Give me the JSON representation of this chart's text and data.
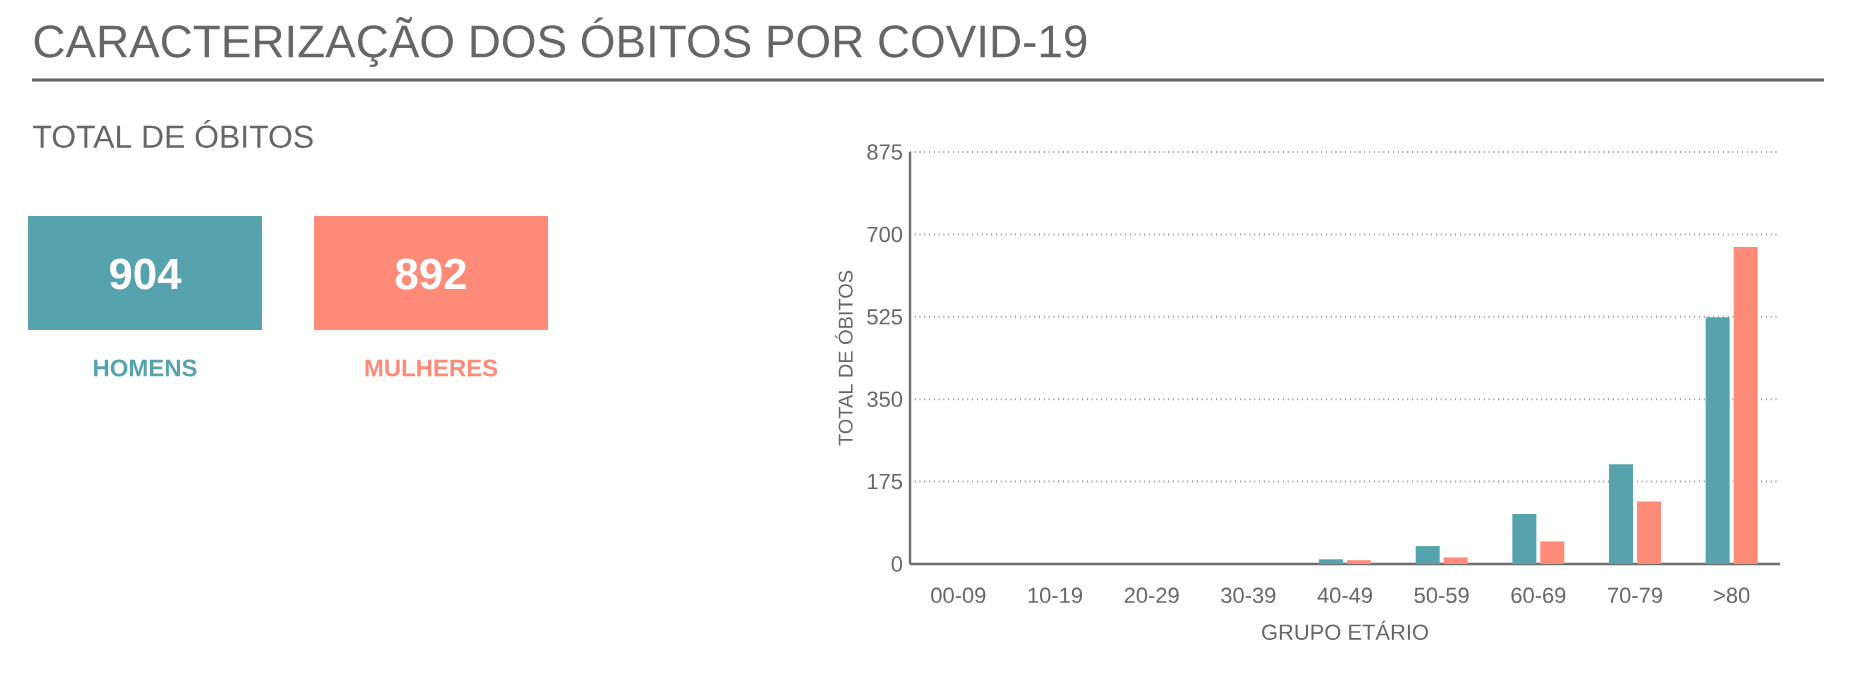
{
  "chart_data": [
    {
      "type": "other",
      "title": "CARACTERIZAÇÃO DOS ÓBITOS POR COVID-19",
      "subtitle": "TOTAL DE ÓBITOS",
      "categories": [
        "HOMENS",
        "MULHERES"
      ],
      "values": [
        904,
        892
      ],
      "data_labels": true,
      "colors": [
        "#57a3ad",
        "#fd8b78"
      ]
    },
    {
      "type": "bar",
      "xlabel": "GRUPO ETÁRIO",
      "ylabel": "TOTAL DE ÓBITOS",
      "categories": [
        "00-09",
        "10-19",
        "20-29",
        "30-39",
        "40-49",
        "50-59",
        "60-69",
        "70-79",
        ">80"
      ],
      "series": [
        {
          "color": "#57a3ad",
          "values": [
            0,
            0,
            0,
            0,
            10,
            38,
            106,
            212,
            524
          ]
        },
        {
          "color": "#fd8b78",
          "values": [
            0,
            0,
            0,
            0,
            8,
            14,
            48,
            133,
            673
          ]
        }
      ],
      "ylim": [
        0,
        875
      ],
      "yticks": [
        0,
        175,
        350,
        525,
        700,
        875
      ],
      "grid": "y"
    }
  ]
}
